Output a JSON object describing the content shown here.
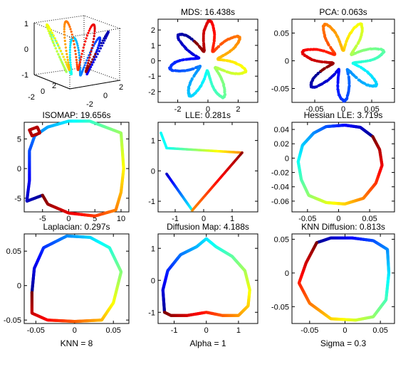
{
  "colors": {
    "colormap": [
      "#00008f",
      "#0000ff",
      "#0080ff",
      "#00ffff",
      "#80ff80",
      "#ffff00",
      "#ff8000",
      "#ff0000",
      "#800000"
    ],
    "frame": "#000000",
    "background": "#ffffff"
  },
  "chart_data": [
    {
      "id": "swiss-3d",
      "type": "scatter",
      "title": "",
      "xlabel": "",
      "view": "3d",
      "ticks": {
        "z": [
          "-1",
          "0",
          "1"
        ],
        "y": [
          "-2",
          "0",
          "2"
        ],
        "x": [
          "-2",
          "0",
          "2"
        ]
      },
      "shape": "flower",
      "petals": 7,
      "points": 320,
      "colormap": "jet"
    },
    {
      "id": "mds",
      "type": "scatter",
      "title": "MDS: 16.438s",
      "xlabel": "",
      "xlim": [
        -3.3,
        3.3
      ],
      "ylim": [
        -2.7,
        2.7
      ],
      "xticks": [
        -2,
        0,
        2
      ],
      "yticks": [
        -2,
        -1,
        0,
        1,
        2
      ],
      "shape": "flower",
      "petals": 7,
      "points": 420,
      "r_base": 1.6,
      "r_amp": 0.95,
      "rotation": 2.2
    },
    {
      "id": "pca",
      "type": "scatter",
      "title": "PCA: 0.063s",
      "xlabel": "",
      "xlim": [
        -0.09,
        0.09
      ],
      "ylim": [
        -0.075,
        0.075
      ],
      "xticks": [
        -0.05,
        0,
        0.05
      ],
      "yticks": [
        -0.05,
        0,
        0.05
      ],
      "shape": "flower",
      "petals": 7,
      "points": 420,
      "r_base": 0.045,
      "r_amp": 0.027,
      "rotation": 3.6
    },
    {
      "id": "isomap",
      "type": "line",
      "title": "ISOMAP: 19.656s",
      "xlabel": "",
      "xlim": [
        -8.5,
        11.5
      ],
      "ylim": [
        -7.3,
        7.8
      ],
      "xticks": [
        -5,
        0,
        5,
        10
      ],
      "yticks": [
        -5,
        0,
        5
      ],
      "path": [
        [
          -5,
          -4.5
        ],
        [
          -8,
          -5.5
        ],
        [
          -7.5,
          -2
        ],
        [
          -7.5,
          3
        ],
        [
          -6.5,
          5.5
        ],
        [
          -4,
          7
        ],
        [
          0,
          8
        ],
        [
          4,
          8
        ],
        [
          7,
          7
        ],
        [
          10,
          6
        ],
        [
          10.5,
          0
        ],
        [
          10,
          -4
        ],
        [
          9,
          -7
        ],
        [
          5,
          -8
        ],
        [
          0,
          -7.5
        ],
        [
          -4,
          -6
        ],
        [
          -5,
          -4.5
        ]
      ],
      "hook": [
        [
          -7.5,
          6.5
        ],
        [
          -6,
          7
        ],
        [
          -5.5,
          6
        ],
        [
          -7,
          5.5
        ]
      ]
    },
    {
      "id": "lle",
      "type": "scatter",
      "title": "LLE: 0.281s",
      "xlabel": "",
      "xlim": [
        -1.6,
        1.9
      ],
      "ylim": [
        -1.35,
        1.6
      ],
      "xticks": [
        -1,
        0,
        1
      ],
      "yticks": [
        -1,
        0,
        1
      ],
      "segments": [
        {
          "from": [
            -1.3,
            -0.1
          ],
          "to": [
            -0.4,
            -1.3
          ],
          "color_from": 0.06,
          "color_to": 0.38
        },
        {
          "from": [
            -1.3,
            0.75
          ],
          "to": [
            1.35,
            0.6
          ],
          "color_from": 0.38,
          "color_to": 0.74
        },
        {
          "from": [
            -0.4,
            -1.3
          ],
          "to": [
            1.35,
            0.6
          ],
          "color_from": 0.74,
          "color_to": 0.98
        }
      ],
      "extra": [
        [
          -1.5,
          1.25
        ],
        [
          -1.3,
          0.75
        ]
      ]
    },
    {
      "id": "hessian-lle",
      "type": "line",
      "title": "Hessian LLE: 3.719s",
      "xlabel": "",
      "xlim": [
        -0.075,
        0.09
      ],
      "ylim": [
        -0.075,
        0.05
      ],
      "xticks": [
        -0.05,
        0,
        0.05
      ],
      "yticks": [
        -0.06,
        -0.04,
        -0.02,
        0,
        0.02,
        0.04
      ],
      "path": [
        [
          0.055,
          0.03
        ],
        [
          0.035,
          0.043
        ],
        [
          0.01,
          0.046
        ],
        [
          -0.02,
          0.044
        ],
        [
          -0.04,
          0.035
        ],
        [
          -0.058,
          0.018
        ],
        [
          -0.065,
          -0.005
        ],
        [
          -0.06,
          -0.03
        ],
        [
          -0.048,
          -0.052
        ],
        [
          -0.02,
          -0.062
        ],
        [
          0.01,
          -0.064
        ],
        [
          0.04,
          -0.056
        ],
        [
          0.06,
          -0.035
        ],
        [
          0.07,
          -0.01
        ],
        [
          0.066,
          0.012
        ],
        [
          0.055,
          0.03
        ]
      ]
    },
    {
      "id": "laplacian",
      "type": "line",
      "title": "Laplacian: 0.297s",
      "xlabel": "KNN = 8",
      "xlim": [
        -0.065,
        0.07
      ],
      "ylim": [
        -0.055,
        0.075
      ],
      "xticks": [
        -0.05,
        0,
        0.05
      ],
      "yticks": [
        -0.05,
        0,
        0.05
      ],
      "path": [
        [
          -0.055,
          -0.01
        ],
        [
          -0.052,
          0.025
        ],
        [
          -0.04,
          0.055
        ],
        [
          -0.01,
          0.072
        ],
        [
          0.02,
          0.07
        ],
        [
          0.045,
          0.055
        ],
        [
          0.06,
          0.02
        ],
        [
          0.05,
          -0.025
        ],
        [
          0.035,
          -0.05
        ],
        [
          0.0,
          -0.052
        ],
        [
          -0.035,
          -0.05
        ],
        [
          -0.055,
          -0.04
        ],
        [
          -0.055,
          -0.01
        ]
      ]
    },
    {
      "id": "diffusion-map",
      "type": "line",
      "title": "Diffusion Map: 4.188s",
      "xlabel": "Alpha = 1",
      "xlim": [
        -1.5,
        1.6
      ],
      "ylim": [
        -1.35,
        1.45
      ],
      "xticks": [
        -1,
        0,
        1
      ],
      "yticks": [
        -1,
        0,
        1
      ],
      "path": [
        [
          -1.3,
          -1.0
        ],
        [
          -1.35,
          -0.3
        ],
        [
          -1.2,
          0.3
        ],
        [
          -0.8,
          0.8
        ],
        [
          -0.3,
          1.05
        ],
        [
          0.0,
          1.3
        ],
        [
          0.3,
          1.05
        ],
        [
          0.8,
          0.75
        ],
        [
          1.2,
          0.3
        ],
        [
          1.35,
          -0.3
        ],
        [
          1.3,
          -0.8
        ],
        [
          1.0,
          -1.1
        ],
        [
          0.5,
          -1.1
        ],
        [
          0.0,
          -1.0
        ],
        [
          -0.6,
          -1.1
        ],
        [
          -1.1,
          -1.1
        ],
        [
          -1.3,
          -1.0
        ]
      ]
    },
    {
      "id": "knn-diffusion",
      "type": "line",
      "title": "KNN Diffusion: 0.813s",
      "xlabel": "Sigma = 0.3",
      "xlim": [
        -0.075,
        0.07
      ],
      "ylim": [
        -0.075,
        0.058
      ],
      "xticks": [
        -0.05,
        0,
        0.05
      ],
      "yticks": [
        -0.05,
        0,
        0.05
      ],
      "path": [
        [
          -0.04,
          0.045
        ],
        [
          -0.02,
          0.052
        ],
        [
          0.01,
          0.052
        ],
        [
          0.04,
          0.048
        ],
        [
          0.06,
          0.035
        ],
        [
          0.062,
          0.0
        ],
        [
          0.058,
          -0.04
        ],
        [
          0.04,
          -0.065
        ],
        [
          0.015,
          -0.07
        ],
        [
          -0.02,
          -0.068
        ],
        [
          -0.05,
          -0.045
        ],
        [
          -0.065,
          -0.015
        ],
        [
          -0.055,
          0.015
        ],
        [
          -0.045,
          0.035
        ],
        [
          -0.04,
          0.045
        ]
      ]
    }
  ]
}
